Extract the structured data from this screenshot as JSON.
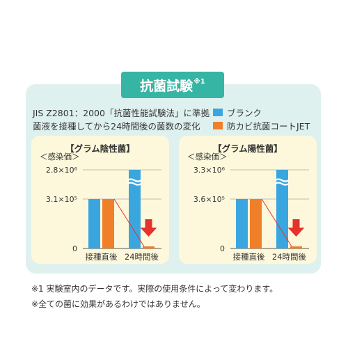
{
  "title": "抗菌試験",
  "title_note_mark": "※1",
  "description": [
    "JIS Z2801：2000「抗菌性能試験法」に準拠",
    "菌液を接種してから24時間後の菌数の変化"
  ],
  "legend": [
    {
      "label": "ブランク",
      "color": "#3aa6e0"
    },
    {
      "label": "防カビ抗菌コートJET",
      "color": "#f07f2a"
    }
  ],
  "notes": [
    "※1 実験室内のデータです。実際の使用条件によって変わります。",
    "※全ての菌に効果があるわけではありません。"
  ],
  "colors": {
    "blank": "#3aa6e0",
    "coat": "#f07f2a",
    "arrow": "#e5322a",
    "line": "#e5322a",
    "panel": "#dff1ef",
    "card": "#fdf8dc",
    "title_bg": "#36b5a4"
  },
  "chart_data": [
    {
      "type": "bar",
      "title": "【グラム陰性菌】",
      "ylabel": "＜感染価＞",
      "categories": [
        "接種直後",
        "24時間後"
      ],
      "yticks": [
        "2.8×10⁶",
        "3.1×10⁵",
        "0"
      ],
      "axis_break": true,
      "series": [
        {
          "name": "ブランク",
          "values": [
            310000,
            2800000
          ]
        },
        {
          "name": "防カビ抗菌コートJET",
          "values": [
            310000,
            0
          ]
        }
      ]
    },
    {
      "type": "bar",
      "title": "【グラム陽性菌】",
      "ylabel": "＜感染価＞",
      "categories": [
        "接種直後",
        "24時間後"
      ],
      "yticks": [
        "3.3×10⁶",
        "3.6×10⁵",
        "0"
      ],
      "axis_break": true,
      "series": [
        {
          "name": "ブランク",
          "values": [
            360000,
            3300000
          ]
        },
        {
          "name": "防カビ抗菌コートJET",
          "values": [
            360000,
            0
          ]
        }
      ]
    }
  ]
}
